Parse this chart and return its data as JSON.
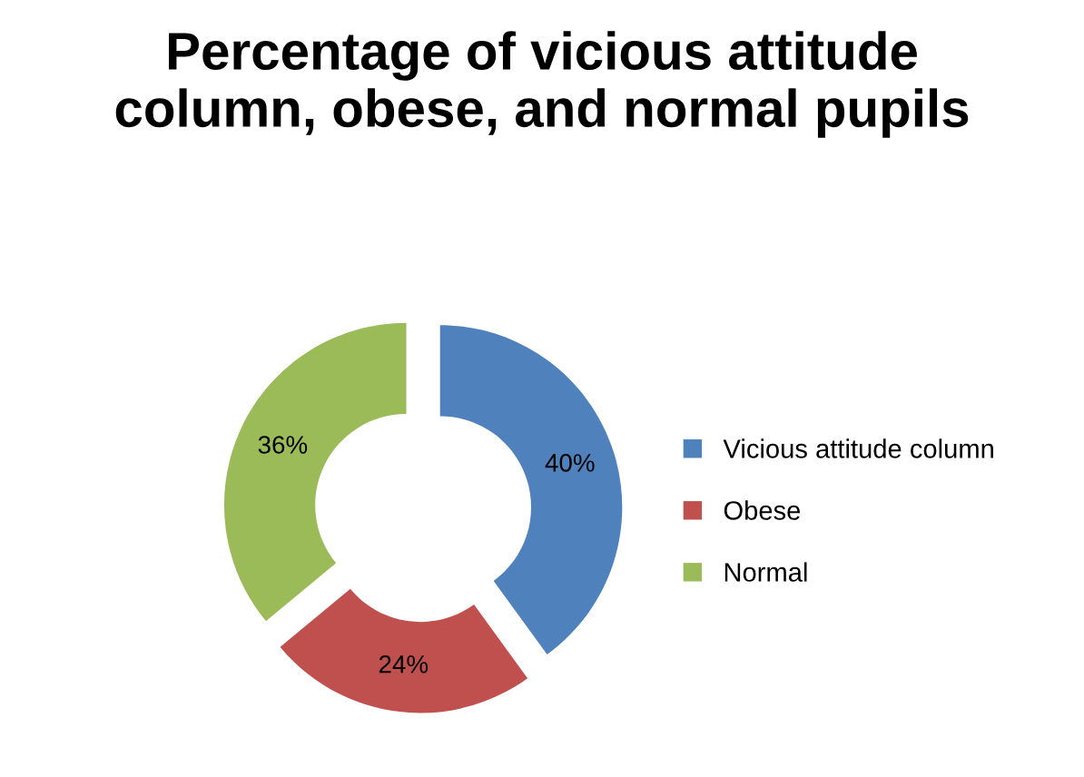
{
  "chart_data": {
    "type": "donut",
    "title": "Percentage of vicious attitude\ncolumn, obese, and normal pupils",
    "categories": [
      "Vicious attitude column",
      "Obese",
      "Normal"
    ],
    "values": [
      40,
      24,
      36
    ],
    "colors": [
      "#4f81bd",
      "#c0504d",
      "#9bbb59"
    ],
    "value_labels": [
      "40%",
      "24%",
      "36%"
    ],
    "legend": "right"
  }
}
